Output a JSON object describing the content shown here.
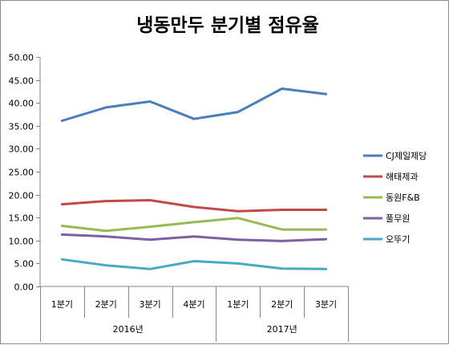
{
  "chart_data": {
    "type": "line",
    "title": "냉동만두 분기별 점유율",
    "categories": [
      "1분기",
      "2분기",
      "3분기",
      "4분기",
      "1분기",
      "2분기",
      "3분기"
    ],
    "groups": [
      {
        "label": "2016년",
        "count": 4
      },
      {
        "label": "2017년",
        "count": 3
      }
    ],
    "ylim": [
      0,
      50
    ],
    "ytick_step": 5,
    "ytick_decimals": 2,
    "grid": false,
    "legend": "right",
    "series": [
      {
        "name": "CJ제일제당",
        "color": "#4a7ebb",
        "values": [
          36.1,
          39.0,
          40.3,
          36.5,
          38.0,
          43.1,
          41.9
        ]
      },
      {
        "name": "해태제과",
        "color": "#be4b48",
        "values": [
          17.9,
          18.6,
          18.8,
          17.3,
          16.4,
          16.7,
          16.7
        ]
      },
      {
        "name": "동원F&B",
        "color": "#98b954",
        "values": [
          13.2,
          12.1,
          13.0,
          14.0,
          14.9,
          12.4,
          12.4
        ]
      },
      {
        "name": "풀무원",
        "color": "#7d60a0",
        "values": [
          11.3,
          10.9,
          10.2,
          10.9,
          10.2,
          9.9,
          10.3
        ]
      },
      {
        "name": "오뚜기",
        "color": "#46aac5",
        "values": [
          5.9,
          4.6,
          3.8,
          5.5,
          5.0,
          3.9,
          3.8
        ]
      }
    ]
  }
}
